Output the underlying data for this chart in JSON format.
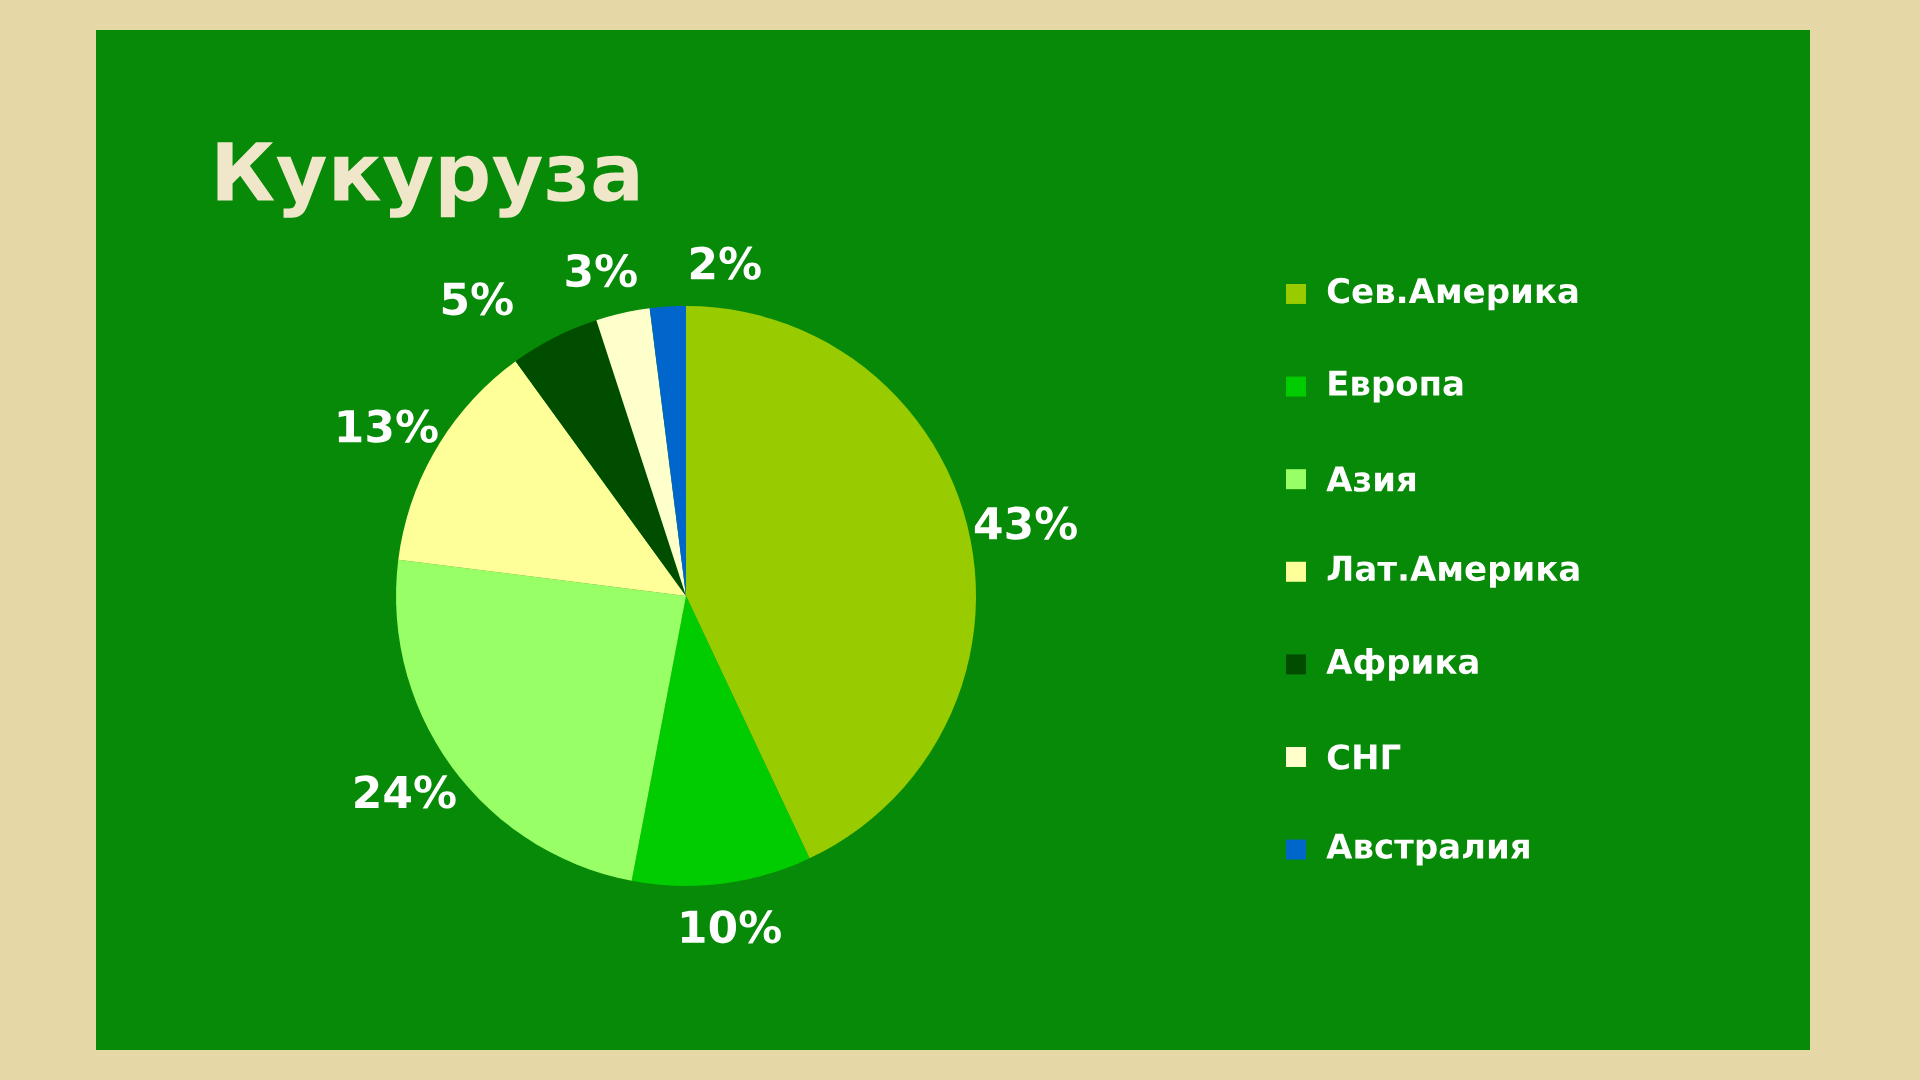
{
  "chart_data": {
    "type": "pie",
    "title": "Кукуруза",
    "categories": [
      "Сев.Америка",
      "Европа",
      "Азия",
      "Лат.Америка",
      "Африка",
      "СНГ",
      "Австралия"
    ],
    "values": [
      43,
      10,
      24,
      13,
      5,
      3,
      2
    ],
    "colors": [
      "#99cc00",
      "#00cc00",
      "#99ff66",
      "#ffff99",
      "#004d00",
      "#ffffcc",
      "#0066cc"
    ],
    "value_labels": [
      "43%",
      "10%",
      "24%",
      "13%",
      "5%",
      "3%",
      "2%"
    ],
    "legend": "right"
  }
}
